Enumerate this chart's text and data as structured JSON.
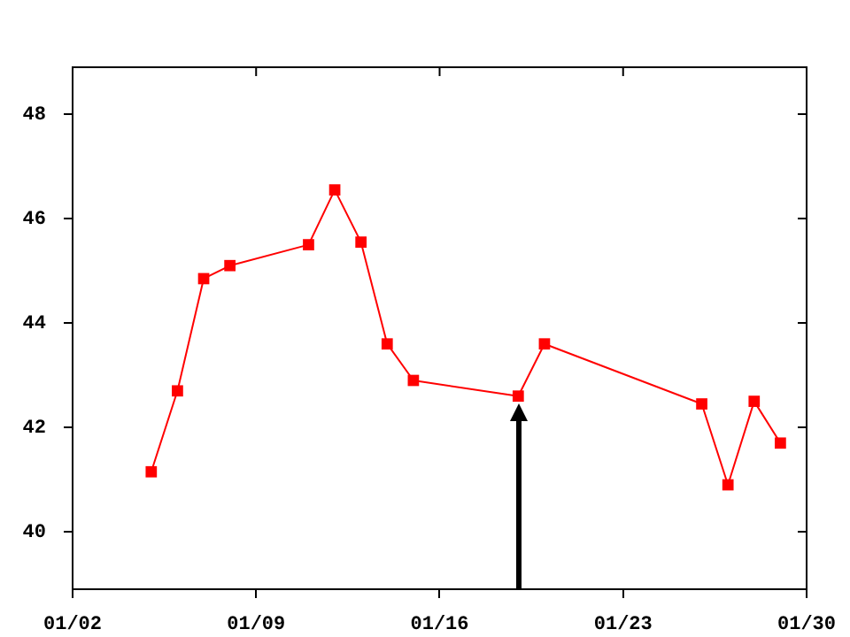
{
  "chart_data": {
    "type": "line",
    "x": [
      "--01-05",
      "--01-06",
      "--01-07",
      "--01-08",
      "--01-11",
      "--01-12",
      "--01-13",
      "--01-14",
      "--01-15",
      "--01-19",
      "--01-20",
      "--01-26",
      "--01-27",
      "--01-28",
      "--01-29"
    ],
    "series": [
      {
        "color": "#ff0000",
        "values": [
          41.15,
          42.7,
          44.85,
          45.1,
          45.5,
          46.55,
          45.55,
          43.6,
          42.9,
          42.6,
          43.6,
          42.45,
          40.9,
          42.5,
          41.7
        ]
      }
    ],
    "xlim": [
      "--01-02",
      "--01-30"
    ],
    "xticks": [
      {
        "value": "--01-02",
        "label": "01/02"
      },
      {
        "value": "--01-09",
        "label": "01/09"
      },
      {
        "value": "--01-16",
        "label": "01/16"
      },
      {
        "value": "--01-23",
        "label": "01/23"
      },
      {
        "value": "--01-30",
        "label": "01/30"
      }
    ],
    "ylim": [
      38.9,
      48.9
    ],
    "yticks": [
      40,
      42,
      44,
      46,
      48
    ],
    "grid": false,
    "legend": false,
    "marker": "square",
    "line_style": "solid"
  }
}
